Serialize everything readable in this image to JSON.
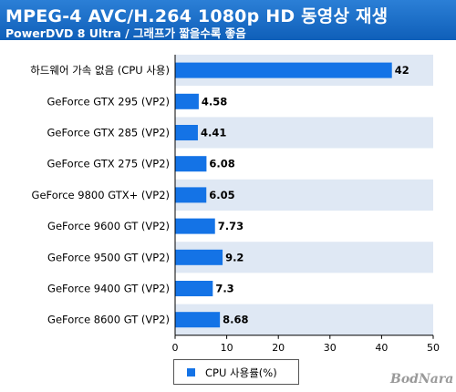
{
  "header": {
    "title": "MPEG-4  AVC/H.264  1080p  HD  동영상  재생",
    "subtitle": "PowerDVD  8  Ultra  /  그래프가  짧을수록  좋음"
  },
  "watermark": "BodNara",
  "colors": {
    "header": "#1565c0",
    "bar": "#1473e6",
    "band_light": "#dfe8f4",
    "band_white": "#ffffff"
  },
  "chart_data": {
    "type": "bar",
    "orientation": "horizontal",
    "title": "MPEG-4  AVC/H.264  1080p  HD  동영상  재생",
    "subtitle": "PowerDVD  8  Ultra  /  그래프가  짧을수록  좋음",
    "xlabel": "",
    "ylabel": "",
    "xlim": [
      0,
      50
    ],
    "ticks": [
      "0",
      "10",
      "20",
      "30",
      "40",
      "50"
    ],
    "grid": false,
    "legend_position": "bottom",
    "categories": [
      "하드웨어  가속  없음  (CPU  사용)",
      "GeForce  GTX  295  (VP2)",
      "GeForce  GTX  285  (VP2)",
      "GeForce  GTX  275  (VP2)",
      "GeForce  9800  GTX+  (VP2)",
      "GeForce  9600  GT  (VP2)",
      "GeForce  9500  GT  (VP2)",
      "GeForce  9400  GT  (VP2)",
      "GeForce  8600  GT  (VP2)"
    ],
    "series": [
      {
        "name": "CPU  사용률(%)",
        "values": [
          42,
          4.58,
          4.41,
          6.08,
          6.05,
          7.73,
          9.2,
          7.3,
          8.68
        ],
        "value_labels": [
          "42",
          "4.58",
          "4.41",
          "6.08",
          "6.05",
          "7.73",
          "9.2",
          "7.3",
          "8.68"
        ]
      }
    ]
  }
}
